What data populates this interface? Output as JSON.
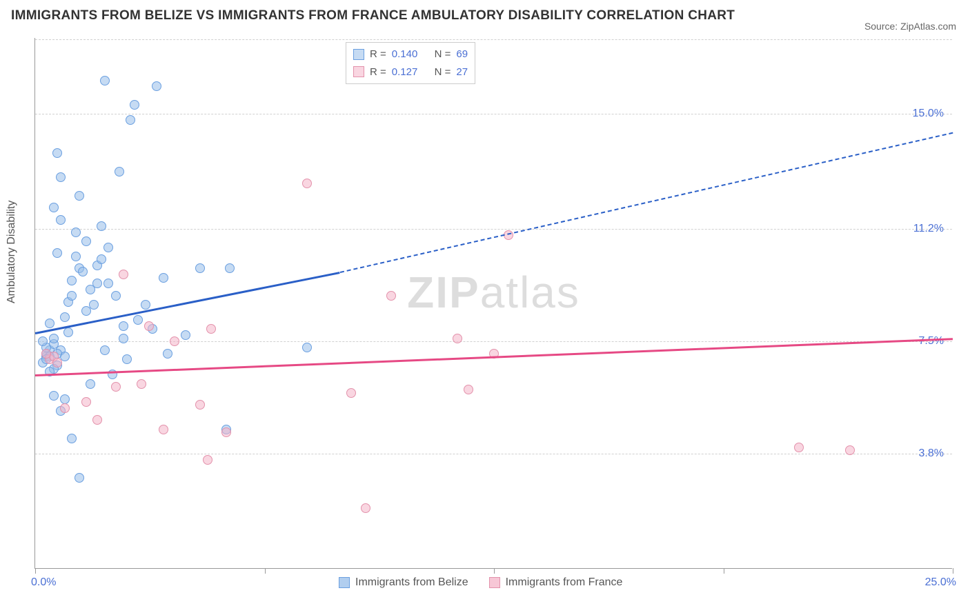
{
  "title": "IMMIGRANTS FROM BELIZE VS IMMIGRANTS FROM FRANCE AMBULATORY DISABILITY CORRELATION CHART",
  "source": "Source: ZipAtlas.com",
  "ylabel": "Ambulatory Disability",
  "watermark_a": "ZIP",
  "watermark_b": "atlas",
  "chart": {
    "type": "scatter",
    "xlim": [
      0,
      25
    ],
    "ylim": [
      0,
      17.5
    ],
    "y_ticks": [
      3.8,
      7.5,
      11.2,
      15.0
    ],
    "y_tick_labels": [
      "3.8%",
      "7.5%",
      "11.2%",
      "15.0%"
    ],
    "x_min_label": "0.0%",
    "x_max_label": "25.0%",
    "x_tick_positions": [
      0,
      6.25,
      12.5,
      18.75,
      25
    ],
    "background_color": "#ffffff",
    "grid_color": "#d0d0d0",
    "axis_color": "#999999",
    "tick_label_color": "#4a6fd4",
    "series": [
      {
        "name": "Immigrants from Belize",
        "fill": "rgba(151,189,234,0.55)",
        "stroke": "#6a9fe0",
        "trend_color": "#2a5fc7",
        "R": "0.140",
        "N": "69",
        "trend": {
          "x1": 0,
          "y1": 7.8,
          "x2_solid": 8.3,
          "y2_solid": 9.8,
          "x2": 25,
          "y2": 14.4
        },
        "points": [
          [
            0.3,
            7.0
          ],
          [
            0.4,
            7.2
          ],
          [
            0.2,
            6.8
          ],
          [
            0.5,
            7.4
          ],
          [
            0.3,
            7.1
          ],
          [
            0.6,
            6.7
          ],
          [
            0.4,
            7.0
          ],
          [
            0.5,
            6.6
          ],
          [
            0.3,
            7.3
          ],
          [
            0.7,
            7.2
          ],
          [
            0.8,
            7.0
          ],
          [
            0.4,
            6.5
          ],
          [
            0.2,
            7.5
          ],
          [
            0.6,
            7.1
          ],
          [
            0.5,
            7.6
          ],
          [
            0.3,
            6.9
          ],
          [
            0.8,
            8.3
          ],
          [
            1.0,
            9.5
          ],
          [
            1.2,
            9.9
          ],
          [
            1.1,
            10.3
          ],
          [
            0.9,
            8.8
          ],
          [
            1.4,
            10.8
          ],
          [
            0.7,
            11.5
          ],
          [
            1.0,
            9.0
          ],
          [
            1.5,
            9.2
          ],
          [
            1.3,
            9.8
          ],
          [
            1.2,
            12.3
          ],
          [
            1.7,
            10.0
          ],
          [
            0.7,
            12.9
          ],
          [
            2.0,
            9.4
          ],
          [
            1.6,
            8.7
          ],
          [
            1.8,
            10.2
          ],
          [
            0.5,
            11.9
          ],
          [
            0.6,
            13.7
          ],
          [
            2.4,
            8.0
          ],
          [
            2.6,
            14.8
          ],
          [
            2.7,
            15.3
          ],
          [
            2.3,
            13.1
          ],
          [
            2.2,
            9.0
          ],
          [
            1.9,
            16.1
          ],
          [
            3.3,
            15.9
          ],
          [
            3.5,
            9.6
          ],
          [
            4.5,
            9.9
          ],
          [
            4.1,
            7.7
          ],
          [
            5.3,
            9.9
          ],
          [
            5.2,
            4.6
          ],
          [
            7.4,
            7.3
          ],
          [
            1.2,
            3.0
          ],
          [
            0.8,
            5.6
          ],
          [
            1.5,
            6.1
          ],
          [
            0.7,
            5.2
          ],
          [
            0.5,
            5.7
          ],
          [
            1.9,
            7.2
          ],
          [
            2.1,
            6.4
          ],
          [
            2.4,
            7.6
          ],
          [
            1.0,
            4.3
          ],
          [
            3.0,
            8.7
          ],
          [
            1.7,
            9.4
          ],
          [
            0.9,
            7.8
          ],
          [
            2.8,
            8.2
          ],
          [
            3.2,
            7.9
          ],
          [
            1.4,
            8.5
          ],
          [
            0.4,
            8.1
          ],
          [
            2.0,
            10.6
          ],
          [
            1.1,
            11.1
          ],
          [
            0.6,
            10.4
          ],
          [
            1.8,
            11.3
          ],
          [
            2.5,
            6.9
          ],
          [
            3.6,
            7.1
          ]
        ]
      },
      {
        "name": "Immigrants from France",
        "fill": "rgba(244,180,200,0.55)",
        "stroke": "#e391ab",
        "trend_color": "#e64984",
        "R": "0.127",
        "N": "27",
        "trend": {
          "x1": 0,
          "y1": 6.4,
          "x2_solid": 25,
          "y2_solid": 7.6,
          "x2": 25,
          "y2": 7.6
        },
        "points": [
          [
            0.4,
            6.9
          ],
          [
            0.5,
            7.0
          ],
          [
            0.3,
            7.1
          ],
          [
            0.6,
            6.8
          ],
          [
            0.8,
            5.3
          ],
          [
            1.4,
            5.5
          ],
          [
            1.7,
            4.9
          ],
          [
            2.2,
            6.0
          ],
          [
            2.4,
            9.7
          ],
          [
            2.9,
            6.1
          ],
          [
            3.1,
            8.0
          ],
          [
            3.5,
            4.6
          ],
          [
            3.8,
            7.5
          ],
          [
            4.5,
            5.4
          ],
          [
            4.8,
            7.9
          ],
          [
            4.7,
            3.6
          ],
          [
            5.2,
            4.5
          ],
          [
            7.4,
            12.7
          ],
          [
            8.6,
            5.8
          ],
          [
            9.7,
            9.0
          ],
          [
            9.0,
            2.0
          ],
          [
            11.5,
            7.6
          ],
          [
            12.5,
            7.1
          ],
          [
            11.8,
            5.9
          ],
          [
            12.9,
            11.0
          ],
          [
            20.8,
            4.0
          ],
          [
            22.2,
            3.9
          ]
        ]
      }
    ],
    "legend_top_labels": {
      "R": "R =",
      "N": "N ="
    },
    "legend_bottom": [
      {
        "label": "Immigrants from Belize",
        "fill": "rgba(151,189,234,0.75)",
        "stroke": "#6a9fe0"
      },
      {
        "label": "Immigrants from France",
        "fill": "rgba(244,180,200,0.75)",
        "stroke": "#e391ab"
      }
    ]
  }
}
